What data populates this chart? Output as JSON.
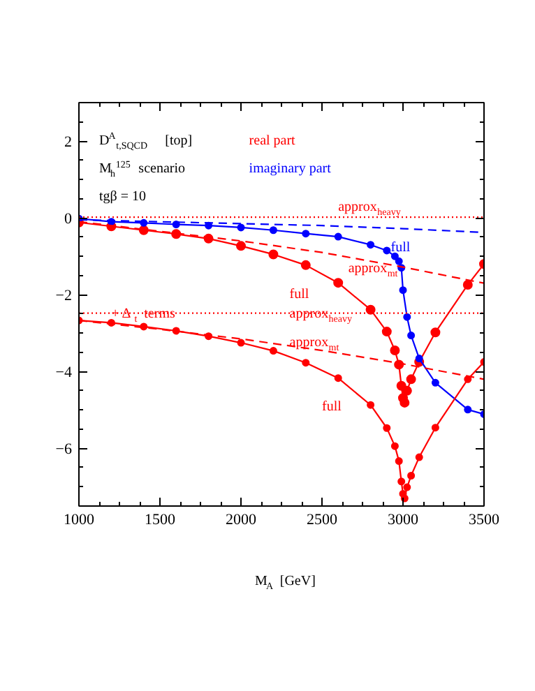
{
  "chart_data": {
    "type": "line",
    "xlabel": "M$_{A}$ [GeV]",
    "xlim": [
      1000,
      3500
    ],
    "ylim": [
      -7.5,
      3
    ],
    "xticks": [
      1000,
      1500,
      2000,
      2500,
      3000,
      3500
    ],
    "yticks": [
      -6,
      -4,
      -2,
      0,
      2
    ],
    "grid": false,
    "series": [
      {
        "color": "#ff0000",
        "marker": "circle",
        "line_style": "solid",
        "x": [
          1000,
          1200,
          1400,
          1600,
          1800,
          2000,
          2200,
          2400,
          2600,
          2800,
          2900,
          2950,
          2975,
          2990,
          3000,
          3010,
          3025,
          3050,
          3100,
          3200,
          3400,
          3500
        ],
        "values": [
          -0.12,
          -0.22,
          -0.32,
          -0.42,
          -0.54,
          -0.73,
          -0.95,
          -1.23,
          -1.69,
          -2.39,
          -2.96,
          -3.45,
          -3.82,
          -4.37,
          -4.69,
          -4.81,
          -4.5,
          -4.2,
          -3.75,
          -2.98,
          -1.74,
          -1.2
        ]
      },
      {
        "color": "#0000ff",
        "marker": "circle",
        "line_style": "solid",
        "x": [
          1000,
          1200,
          1400,
          1600,
          1800,
          2000,
          2200,
          2400,
          2600,
          2800,
          2900,
          2950,
          2975,
          2990,
          3000,
          3025,
          3050,
          3100,
          3200,
          3400,
          3500
        ],
        "values": [
          -0.02,
          -0.1,
          -0.13,
          -0.17,
          -0.2,
          -0.25,
          -0.32,
          -0.41,
          -0.49,
          -0.7,
          -0.85,
          -1.0,
          -1.13,
          -1.3,
          -1.88,
          -2.58,
          -3.06,
          -3.66,
          -4.29,
          -4.99,
          -5.11
        ]
      },
      {
        "color": "#ff0000",
        "marker": "none",
        "line_style": "dashed",
        "x": [
          1000,
          1500,
          2000,
          2500,
          3000,
          3500
        ],
        "values": [
          -0.1,
          -0.35,
          -0.6,
          -0.9,
          -1.28,
          -1.7
        ]
      },
      {
        "color": "#0000ff",
        "marker": "none",
        "line_style": "dashed",
        "x": [
          1000,
          2000,
          2500,
          3000,
          3500
        ],
        "values": [
          -0.05,
          -0.15,
          -0.2,
          -0.28,
          -0.38
        ]
      },
      {
        "color": "#ff0000",
        "marker": "none",
        "line_style": "dotted",
        "x": [
          1000,
          3500
        ],
        "values": [
          0.02,
          0.02
        ]
      },
      {
        "color": "#ff0000",
        "marker": "circle",
        "line_style": "solid",
        "x": [
          1000,
          1200,
          1400,
          1600,
          1800,
          2000,
          2200,
          2400,
          2600,
          2800,
          2900,
          2950,
          2975,
          2990,
          3000,
          3010,
          3025,
          3050,
          3100,
          3200,
          3400,
          3500
        ],
        "values": [
          -2.67,
          -2.73,
          -2.83,
          -2.94,
          -3.08,
          -3.25,
          -3.46,
          -3.77,
          -4.17,
          -4.87,
          -5.47,
          -5.94,
          -6.33,
          -6.86,
          -7.18,
          -7.3,
          -7.01,
          -6.71,
          -6.23,
          -5.46,
          -4.2,
          -3.75
        ]
      },
      {
        "color": "#ff0000",
        "marker": "none",
        "line_style": "dashed",
        "x": [
          1000,
          1500,
          2000,
          2500,
          3000,
          3500
        ],
        "values": [
          -2.67,
          -2.9,
          -3.15,
          -3.45,
          -3.8,
          -4.2
        ]
      },
      {
        "color": "#ff0000",
        "marker": "none",
        "line_style": "dotted",
        "x": [
          1000,
          3500
        ],
        "values": [
          -2.48,
          -2.48
        ]
      }
    ],
    "annotations": [
      "D$^{A}$$_{t,SQCD}$  [top]",
      "M$_{h}$$^{125}$ scenario",
      "tgβ = 10",
      "real part",
      "imaginary part",
      "approx$_{heavy}$",
      "full",
      "approx$_{mt}$",
      "full",
      "approx$_{heavy}$",
      "+ Δ$_{t}$ terms",
      "approx$_{mt}$",
      "full"
    ]
  }
}
